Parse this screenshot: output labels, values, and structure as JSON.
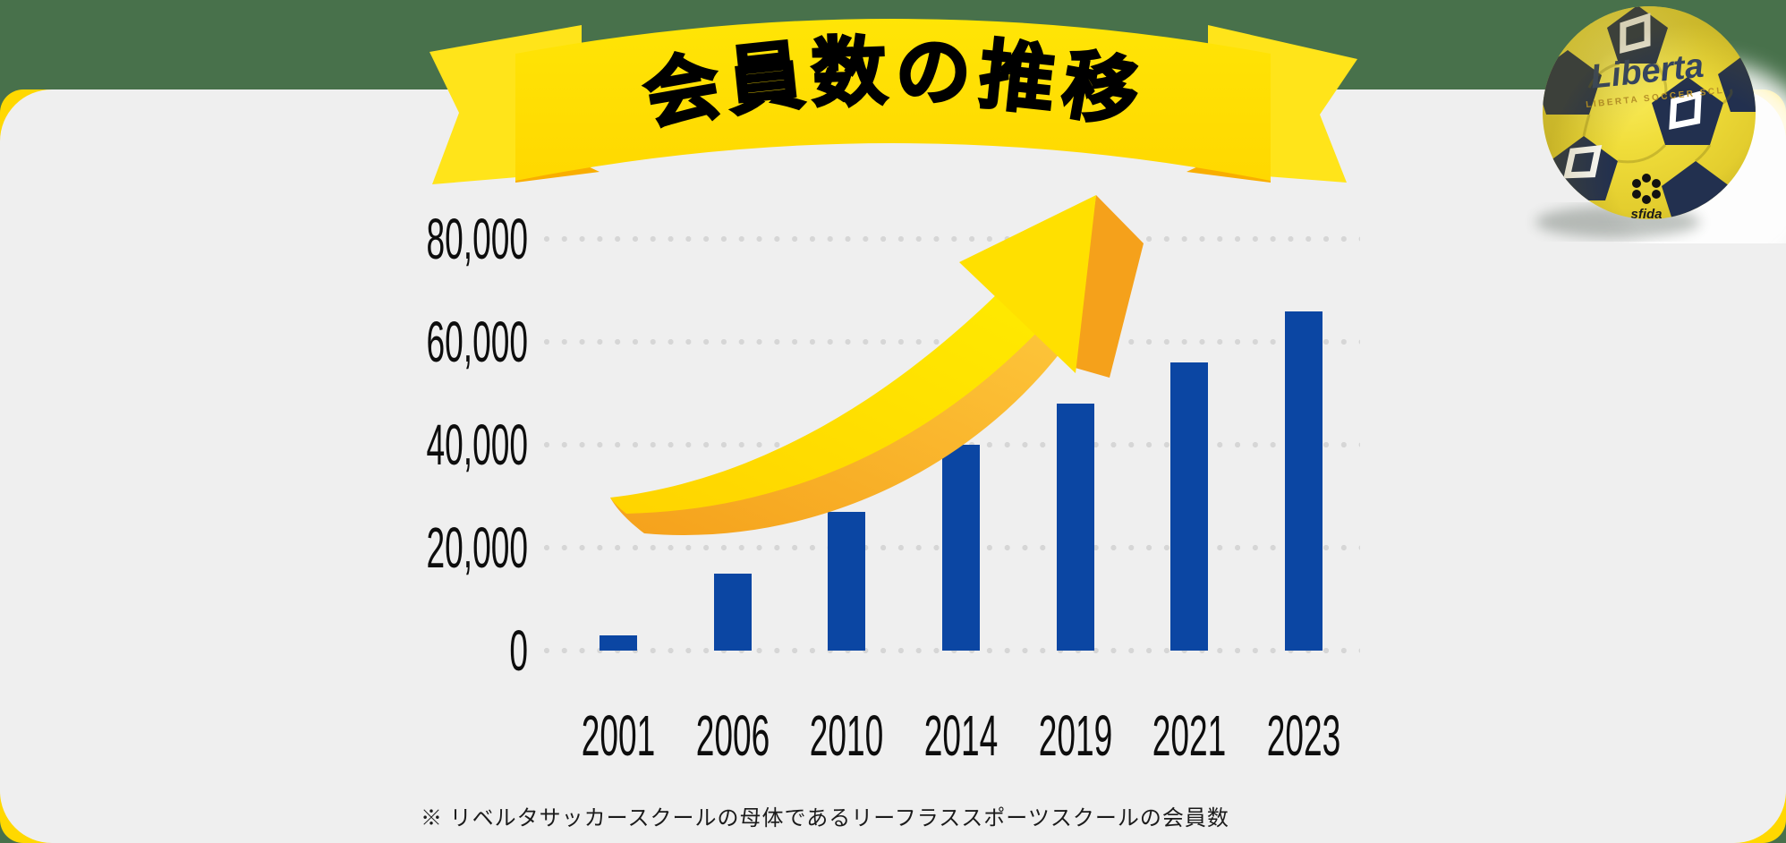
{
  "page": {
    "background_color": "#48714b",
    "card_color": "#efefef",
    "card_edge_color": "#ffd800"
  },
  "banner": {
    "title": "会員数の推移",
    "ribbon_color": "#ffdf00",
    "ribbon_fold_color": "#f9ae00",
    "title_color": "#000000"
  },
  "chart_data": {
    "type": "bar",
    "title": "会員数の推移",
    "categories": [
      "2001",
      "2006",
      "2010",
      "2014",
      "2019",
      "2021",
      "2023"
    ],
    "values": [
      3000,
      15000,
      27000,
      40000,
      48000,
      56000,
      66000
    ],
    "xlabel": "",
    "ylabel": "",
    "ylim": [
      0,
      80000
    ],
    "yticks": [
      0,
      20000,
      40000,
      60000,
      80000
    ],
    "ytick_labels": [
      "0",
      "20,000",
      "40,000",
      "60,000",
      "80,000"
    ],
    "bar_color": "#0b46a3",
    "grid": "dotted horizontal gridlines",
    "grid_color": "#d6d6d6",
    "legend": "none",
    "annotation": "yellow-orange curved growth arrow sweeping up over the bars"
  },
  "arrow": {
    "front_color": "#ffe000",
    "side_color": "#f5a11b"
  },
  "ball": {
    "brand": "Liberta",
    "sub_brand": "LIBERTA SOCCER SCL",
    "maker": "sfida",
    "base_color": "#f0dd3a",
    "patch_color": "#22304f"
  },
  "footnote": {
    "text": "※ リベルタサッカースクールの母体であるリーフラススポーツスクールの会員数"
  }
}
